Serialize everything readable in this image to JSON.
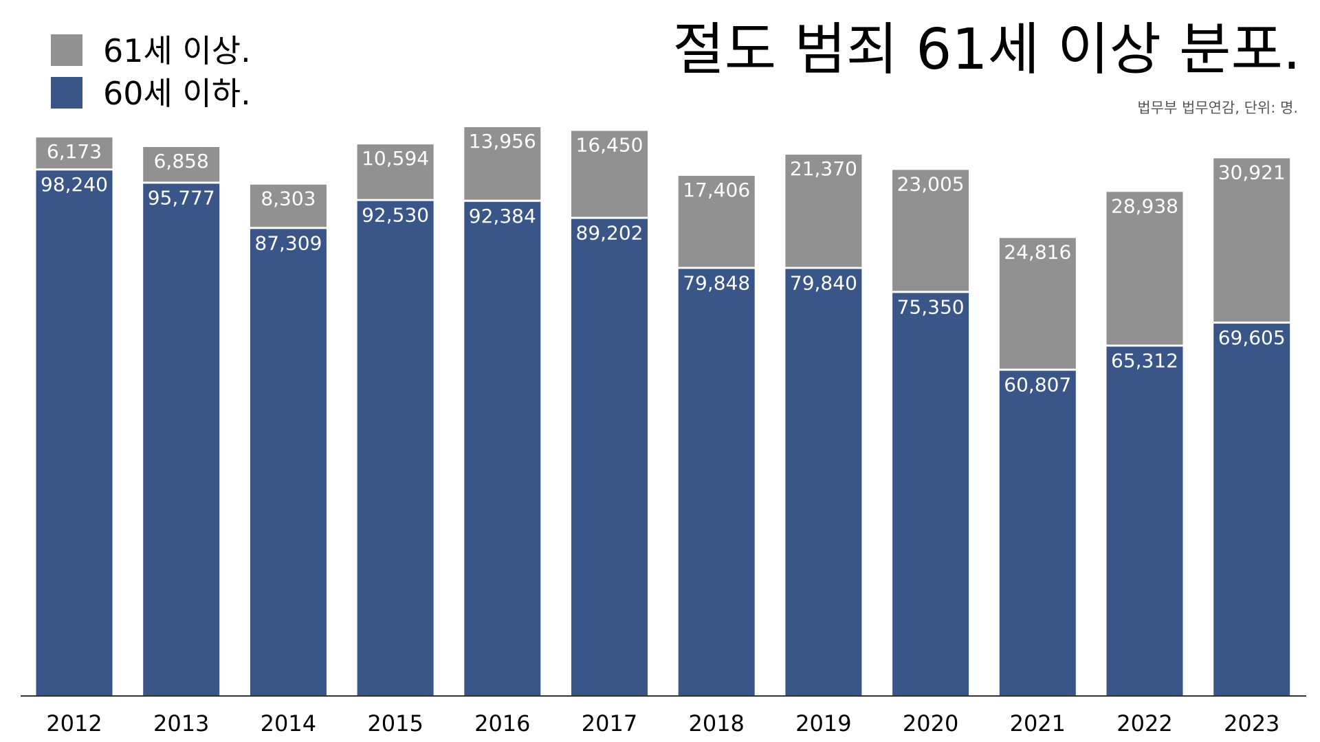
{
  "chart_data": {
    "type": "bar",
    "stacked": true,
    "title": "절도 범죄 61세 이상 분포.",
    "subtitle": "법무부 법무연감, 단위: 명.",
    "categories": [
      "2012",
      "2013",
      "2014",
      "2015",
      "2016",
      "2017",
      "2018",
      "2019",
      "2020",
      "2021",
      "2022",
      "2023"
    ],
    "series": [
      {
        "name": "60세 이하.",
        "color": "#3A5588",
        "values": [
          98240,
          95777,
          87309,
          92530,
          92384,
          89202,
          79848,
          79840,
          75350,
          60807,
          65312,
          69605
        ],
        "labels": [
          "98,240",
          "95,777",
          "87,309",
          "92,530",
          "92,384",
          "89,202",
          "79,848",
          "79,840",
          "75,350",
          "60,807",
          "65,312",
          "69,605"
        ]
      },
      {
        "name": "61세 이상.",
        "color": "#919191",
        "values": [
          6173,
          6858,
          8303,
          10594,
          13956,
          16450,
          17406,
          21370,
          23005,
          24816,
          28938,
          30921
        ],
        "labels": [
          "6,173",
          "6,858",
          "8,303",
          "10,594",
          "13,956",
          "16,450",
          "17,406",
          "21,370",
          "23,005",
          "24,816",
          "28,938",
          "30,921"
        ]
      }
    ],
    "legend": {
      "placement": "top-left",
      "order": [
        1,
        0
      ]
    },
    "ylim": [
      0,
      107000
    ],
    "grid": false,
    "xlabel": "",
    "ylabel": ""
  }
}
